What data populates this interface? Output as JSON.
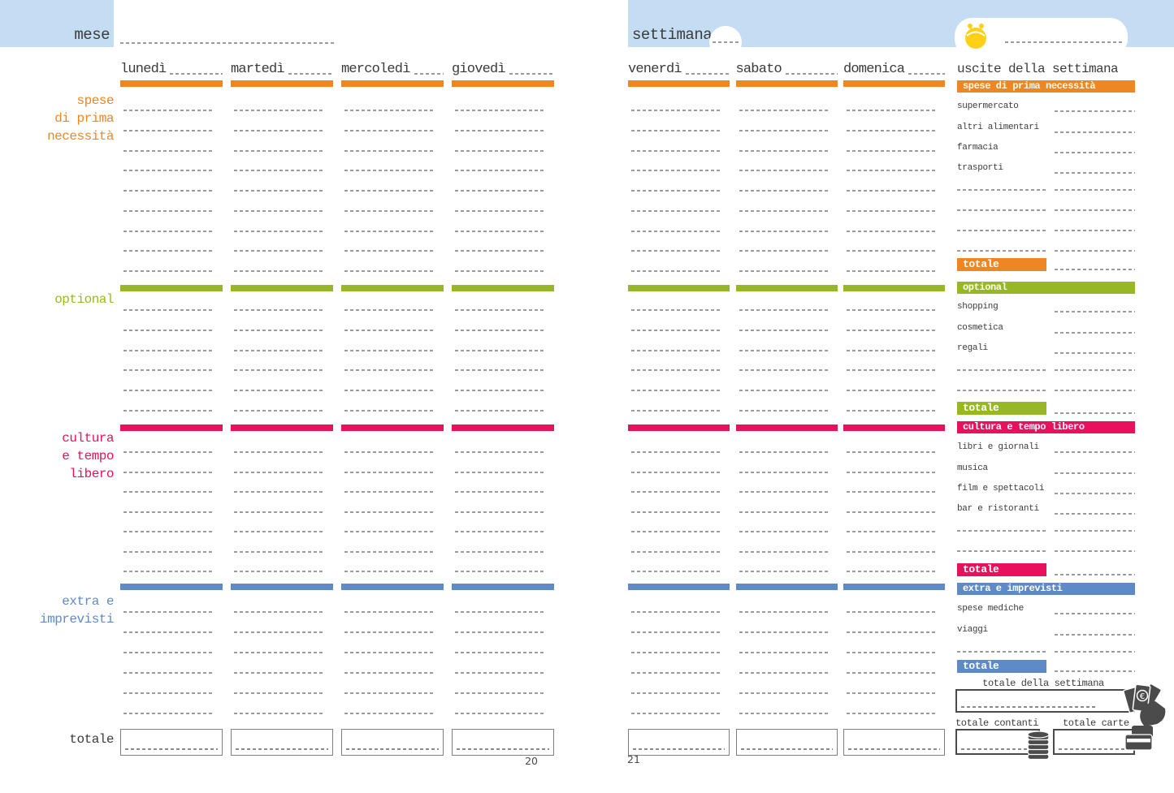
{
  "pages": {
    "left": {
      "title": "mese",
      "page_number": "20",
      "days": [
        "lunedì",
        "martedì",
        "mercoledì",
        "giovedì"
      ],
      "total_label": "totale"
    },
    "right": {
      "title": "settimana",
      "page_number": "21",
      "days": [
        "venerdì",
        "sabato",
        "domenica"
      ],
      "summary_title": "uscite della settimana",
      "week_total_label": "totale della settimana",
      "cash_total_label": "totale contanti",
      "card_total_label": "totale carte"
    }
  },
  "sections": [
    {
      "name": "spese di prima necessità",
      "label_lines": [
        "spese",
        "di prima",
        "necessità"
      ],
      "color": "#ee8622",
      "items": [
        "supermercato",
        "altri alimentari",
        "farmacia",
        "trasporti"
      ],
      "total_label": "totale"
    },
    {
      "name": "optional",
      "label_lines": [
        "optional"
      ],
      "color": "#97b824",
      "items": [
        "shopping",
        "cosmetica",
        "regali"
      ],
      "total_label": "totale"
    },
    {
      "name": "cultura e tempo libero",
      "label_lines": [
        "cultura",
        "e tempo",
        "libero"
      ],
      "color": "#e8115c",
      "items": [
        "libri e giornali",
        "musica",
        "film e spettacoli",
        "bar e ristoranti"
      ],
      "total_label": "totale"
    },
    {
      "name": "extra e imprevisti",
      "label_lines": [
        "extra e",
        "imprevisti"
      ],
      "color": "#5e8bc6",
      "items": [
        "spese mediche",
        "viaggi"
      ],
      "total_label": "totale"
    }
  ],
  "icons": {
    "purse": "purse-icon",
    "money": "euro-banknotes-hand-icon",
    "coins": "coin-stack-icon",
    "card": "credit-card-icon"
  },
  "colors": {
    "header_blue": "#c5ddf2",
    "dash_blue": "#9fc2e6",
    "dash_gray": "#9b9b9b",
    "text_dark": "#3b3b3b",
    "box_gray": "#7e7e7e",
    "icon_gray": "#4b4b4b",
    "purse_yellow": "#ffd015"
  }
}
